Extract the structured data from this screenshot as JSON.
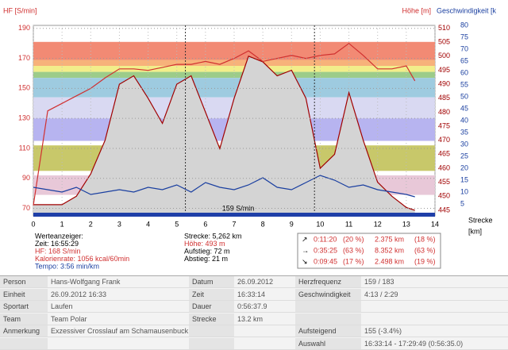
{
  "chart_data": {
    "type": "line",
    "y_label": "HF [S/min]",
    "y2_label": "Höhe [m]",
    "y3_label": "Geschwindigkeit [k",
    "x_label": "Strecke",
    "x_unit": "[km]",
    "annotation": "159 S/min",
    "xlim": [
      0,
      14
    ],
    "xticks": [
      0,
      1,
      2,
      3,
      4,
      5,
      6,
      7,
      8,
      9,
      10,
      11,
      12,
      13,
      14
    ],
    "ylim": [
      65,
      192
    ],
    "yticks": [
      70,
      90,
      110,
      130,
      150,
      170,
      190
    ],
    "y2lim": [
      443,
      511
    ],
    "y2ticks": [
      445,
      450,
      455,
      460,
      465,
      470,
      475,
      480,
      485,
      490,
      495,
      500,
      505,
      510
    ],
    "y3lim": [
      0,
      80
    ],
    "y3ticks": [
      5,
      10,
      15,
      20,
      25,
      30,
      35,
      40,
      45,
      50,
      55,
      60,
      65,
      70,
      75,
      80
    ],
    "grid": true,
    "zones": [
      {
        "from": 169,
        "to": 181,
        "color": "#f28a74"
      },
      {
        "from": 165,
        "to": 169,
        "color": "#f7b27a"
      },
      {
        "from": 161,
        "to": 165,
        "color": "#f2ee8a"
      },
      {
        "from": 157,
        "to": 161,
        "color": "#9ccc8a"
      },
      {
        "from": 144,
        "to": 157,
        "color": "#9ecbe0"
      },
      {
        "from": 130,
        "to": 144,
        "color": "#d9d9f2"
      },
      {
        "from": 115,
        "to": 130,
        "color": "#b7b4f0"
      },
      {
        "from": 95,
        "to": 112,
        "color": "#c8c86a"
      },
      {
        "from": 79,
        "to": 92,
        "color": "#e8c8d8"
      }
    ],
    "cursor_lines": [
      5.3,
      9.8
    ],
    "x": [
      0,
      0.5,
      1,
      1.5,
      2,
      2.5,
      3,
      3.5,
      4,
      4.5,
      5,
      5.5,
      6,
      6.5,
      7,
      7.5,
      8,
      8.5,
      9,
      9.5,
      10,
      10.5,
      11,
      11.5,
      12,
      12.5,
      13,
      13.3
    ],
    "series": [
      {
        "name": "Höhe",
        "color": "#a00000",
        "fill": "#d4d4d4",
        "axis": "y2",
        "values": [
          447,
          447,
          447,
          450,
          458,
          470,
          490,
          493,
          485,
          476,
          490,
          493,
          480,
          467,
          485,
          500,
          498,
          493,
          495,
          485,
          460,
          465,
          487,
          470,
          455,
          450,
          446,
          445
        ]
      },
      {
        "name": "HF",
        "color": "#d03030",
        "axis": "y",
        "values": [
          72,
          135,
          140,
          145,
          150,
          157,
          163,
          163,
          162,
          164,
          166,
          166,
          168,
          166,
          170,
          175,
          168,
          170,
          172,
          170,
          172,
          173,
          180,
          172,
          163,
          163,
          165,
          155
        ]
      },
      {
        "name": "Geschwindigkeit",
        "color": "#1a3fa0",
        "axis": "y3",
        "values": [
          12,
          11,
          10,
          12,
          9,
          10,
          11,
          10,
          12,
          11,
          13,
          10,
          14,
          12,
          11,
          13,
          16,
          12,
          11,
          14,
          17,
          15,
          12,
          13,
          11,
          10,
          9,
          8
        ]
      }
    ]
  },
  "info": {
    "left": [
      "Werteanzeiger:",
      "Zeit: 16:55:29",
      "HF: 168 S/min",
      "Kalorienrate: 1056 kcal/60min",
      "Tempo: 3:56 min/km"
    ],
    "middle": [
      "Strecke: 5,262 km",
      "Höhe: 493 m",
      "Aufstieg: 72 m",
      "Abstieg: 21 m"
    ],
    "stats": [
      [
        "↗",
        "0:11:20",
        "(20 %)",
        "2.375 km",
        "(18 %)"
      ],
      [
        "→",
        "0:35:25",
        "(63 %)",
        "8.352 km",
        "(63 %)"
      ],
      [
        "↘",
        "0:09:45",
        "(17 %)",
        "2.498 km",
        "(19 %)"
      ]
    ]
  },
  "table": {
    "rows": [
      [
        "Person",
        "Hans-Wolfgang Frank",
        "Datum",
        "26.09.2012",
        "Herzfrequenz",
        "159 / 183"
      ],
      [
        "Einheit",
        "26.09.2012 16:33",
        "Zeit",
        "16:33:14",
        "Geschwindigkeit",
        "4:13 / 2:29"
      ],
      [
        "Sportart",
        "Laufen",
        "Dauer",
        "0:56:37.9",
        null,
        null
      ],
      [
        "Team",
        "Team Polar",
        "Strecke",
        "13.2 km",
        null,
        null
      ],
      [
        "Anmerkung",
        "Exzessiver Crosslauf am Schamausenbuck",
        null,
        null,
        "Aufsteigend",
        "155 (-3.4%)"
      ],
      [
        null,
        null,
        null,
        null,
        "Auswahl",
        "16:33:14 - 17:29:49 (0:56:35.0)"
      ]
    ]
  }
}
